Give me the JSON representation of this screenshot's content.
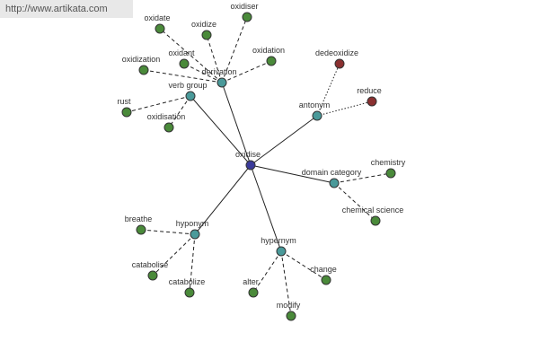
{
  "watermark": "http://www.artikata.com",
  "center": "oxidise",
  "relations": [
    {
      "label": "derivation",
      "words": [
        "oxidate",
        "oxidize",
        "oxidiser",
        "oxidant",
        "oxidation",
        "oxidization"
      ]
    },
    {
      "label": "verb group",
      "words": [
        "rust",
        "oxidisation"
      ]
    },
    {
      "label": "antonym",
      "words": [
        "dedeoxidize",
        "reduce"
      ]
    },
    {
      "label": "domain category",
      "words": [
        "chemistry",
        "chemical science"
      ]
    },
    {
      "label": "hyponym",
      "words": [
        "breathe",
        "catabolise",
        "catabolize"
      ]
    },
    {
      "label": "hypernym",
      "words": [
        "alter",
        "modify",
        "change"
      ]
    }
  ]
}
